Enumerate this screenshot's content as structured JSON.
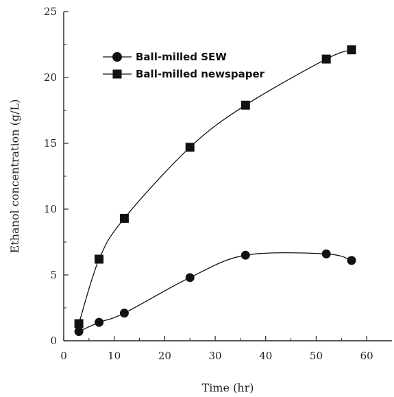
{
  "chart_data": {
    "type": "line",
    "xlabel": "Time (hr)",
    "ylabel": "Ethanol concentration (g/L)",
    "xlim": [
      0,
      65
    ],
    "ylim": [
      0,
      25
    ],
    "xticks": [
      0,
      10,
      20,
      30,
      40,
      50,
      60
    ],
    "yticks": [
      0,
      5,
      10,
      15,
      20,
      25
    ],
    "grid": false,
    "legend_position": "top-left",
    "series": [
      {
        "name": "Ball-milled SEW",
        "marker": "circle",
        "color": "#111111",
        "x": [
          3,
          7,
          12,
          25,
          36,
          52,
          57
        ],
        "y": [
          0.7,
          1.4,
          2.1,
          4.8,
          6.5,
          6.6,
          6.1
        ]
      },
      {
        "name": "Ball-milled newspaper",
        "marker": "square",
        "color": "#111111",
        "x": [
          3,
          7,
          12,
          25,
          36,
          52,
          57
        ],
        "y": [
          1.3,
          6.2,
          9.3,
          14.7,
          17.9,
          21.4,
          22.1
        ]
      }
    ]
  }
}
